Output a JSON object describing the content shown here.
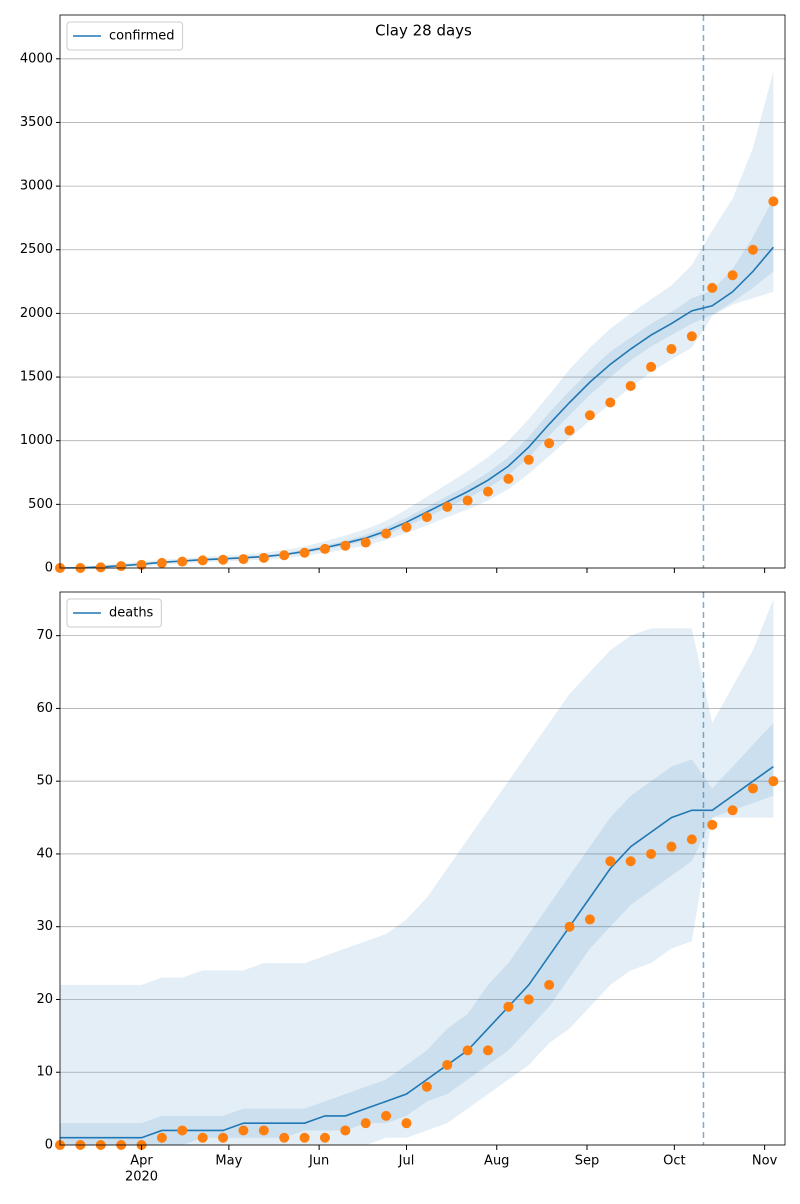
{
  "chart_data": [
    {
      "type": "line",
      "title": "Clay 28 days",
      "legend_corner": "upper left",
      "grid": true,
      "xtick_labels": false,
      "x": [
        "2020-03-04",
        "2020-03-11",
        "2020-03-18",
        "2020-03-25",
        "2020-04-01",
        "2020-04-08",
        "2020-04-15",
        "2020-04-22",
        "2020-04-29",
        "2020-05-06",
        "2020-05-13",
        "2020-05-20",
        "2020-05-27",
        "2020-06-03",
        "2020-06-10",
        "2020-06-17",
        "2020-06-24",
        "2020-07-01",
        "2020-07-08",
        "2020-07-15",
        "2020-07-22",
        "2020-07-29",
        "2020-08-05",
        "2020-08-12",
        "2020-08-19",
        "2020-08-26",
        "2020-09-02",
        "2020-09-09",
        "2020-09-16",
        "2020-09-23",
        "2020-09-30",
        "2020-10-07",
        "2020-10-14",
        "2020-10-21",
        "2020-10-28",
        "2020-11-04"
      ],
      "xlim": [
        "2020-03-04",
        "2020-11-08"
      ],
      "xticks": [
        {
          "value": "2020-04-01",
          "label": "Apr"
        },
        {
          "value": "2020-05-01",
          "label": "May"
        },
        {
          "value": "2020-06-01",
          "label": "Jun"
        },
        {
          "value": "2020-07-01",
          "label": "Jul"
        },
        {
          "value": "2020-08-01",
          "label": "Aug"
        },
        {
          "value": "2020-09-01",
          "label": "Sep"
        },
        {
          "value": "2020-10-01",
          "label": "Oct"
        },
        {
          "value": "2020-11-01",
          "label": "Nov"
        }
      ],
      "vline": "2020-10-11",
      "ylim": [
        0,
        4344
      ],
      "yticks": [
        0,
        500,
        1000,
        1500,
        2000,
        2500,
        3000,
        3500,
        4000
      ],
      "bands": [
        {
          "color": "#1f77b4",
          "upper": [
            5,
            10,
            20,
            35,
            50,
            65,
            75,
            85,
            95,
            105,
            120,
            140,
            170,
            210,
            255,
            305,
            370,
            460,
            560,
            660,
            760,
            870,
            1000,
            1170,
            1360,
            1560,
            1730,
            1880,
            2000,
            2110,
            2220,
            2380,
            2650,
            2900,
            3300,
            3900
          ],
          "lower": [
            0,
            0,
            2,
            6,
            12,
            25,
            35,
            45,
            52,
            58,
            65,
            75,
            95,
            120,
            145,
            175,
            220,
            275,
            335,
            400,
            460,
            530,
            620,
            740,
            880,
            1020,
            1160,
            1290,
            1420,
            1540,
            1640,
            1730,
            1980,
            2070,
            2120,
            2170
          ]
        },
        {
          "color": "#1f77b4",
          "upper": [
            2,
            5,
            12,
            24,
            38,
            53,
            63,
            73,
            80,
            88,
            100,
            115,
            145,
            178,
            215,
            260,
            320,
            395,
            480,
            565,
            650,
            750,
            870,
            1030,
            1220,
            1390,
            1550,
            1700,
            1810,
            1920,
            2010,
            2120,
            2180,
            2350,
            2600,
            2900
          ],
          "lower": [
            0,
            0,
            5,
            13,
            23,
            37,
            47,
            57,
            64,
            72,
            80,
            95,
            117,
            144,
            176,
            212,
            262,
            328,
            400,
            475,
            550,
            630,
            730,
            870,
            1040,
            1200,
            1360,
            1500,
            1630,
            1740,
            1830,
            1920,
            1990,
            2090,
            2200,
            2330
          ]
        }
      ],
      "series": [
        {
          "name": "confirmed",
          "color": "#1f77b4",
          "marker": "line",
          "values": [
            0,
            2,
            8,
            18,
            30,
            45,
            55,
            65,
            72,
            80,
            90,
            105,
            130,
            160,
            195,
            235,
            290,
            360,
            440,
            520,
            600,
            690,
            800,
            950,
            1130,
            1300,
            1460,
            1600,
            1720,
            1830,
            1920,
            2020,
            2060,
            2170,
            2330,
            2520
          ]
        },
        {
          "color": "#ff7f0e",
          "marker": "dots",
          "values": [
            0,
            0,
            5,
            15,
            25,
            40,
            50,
            60,
            65,
            70,
            80,
            100,
            120,
            150,
            175,
            200,
            270,
            320,
            400,
            480,
            530,
            600,
            700,
            850,
            980,
            1080,
            1200,
            1300,
            1430,
            1580,
            1720,
            1820,
            2200,
            2300,
            2500,
            2880
          ]
        }
      ]
    },
    {
      "type": "line",
      "legend_corner": "upper left",
      "grid": true,
      "xtick_labels": true,
      "x_year_label": "2020",
      "x": [
        "2020-03-04",
        "2020-03-11",
        "2020-03-18",
        "2020-03-25",
        "2020-04-01",
        "2020-04-08",
        "2020-04-15",
        "2020-04-22",
        "2020-04-29",
        "2020-05-06",
        "2020-05-13",
        "2020-05-20",
        "2020-05-27",
        "2020-06-03",
        "2020-06-10",
        "2020-06-17",
        "2020-06-24",
        "2020-07-01",
        "2020-07-08",
        "2020-07-15",
        "2020-07-22",
        "2020-07-29",
        "2020-08-05",
        "2020-08-12",
        "2020-08-19",
        "2020-08-26",
        "2020-09-02",
        "2020-09-09",
        "2020-09-16",
        "2020-09-23",
        "2020-09-30",
        "2020-10-07",
        "2020-10-14",
        "2020-10-21",
        "2020-10-28",
        "2020-11-04"
      ],
      "xlim": [
        "2020-03-04",
        "2020-11-08"
      ],
      "xticks": [
        {
          "value": "2020-04-01",
          "label": "Apr"
        },
        {
          "value": "2020-05-01",
          "label": "May"
        },
        {
          "value": "2020-06-01",
          "label": "Jun"
        },
        {
          "value": "2020-07-01",
          "label": "Jul"
        },
        {
          "value": "2020-08-01",
          "label": "Aug"
        },
        {
          "value": "2020-09-01",
          "label": "Sep"
        },
        {
          "value": "2020-10-01",
          "label": "Oct"
        },
        {
          "value": "2020-11-01",
          "label": "Nov"
        }
      ],
      "vline": "2020-10-11",
      "ylim": [
        0,
        76
      ],
      "yticks": [
        0,
        10,
        20,
        30,
        40,
        50,
        60,
        70
      ],
      "bands": [
        {
          "color": "#1f77b4",
          "upper": [
            22,
            22,
            22,
            22,
            22,
            23,
            23,
            24,
            24,
            24,
            25,
            25,
            25,
            26,
            27,
            28,
            29,
            31,
            34,
            38,
            42,
            46,
            50,
            54,
            58,
            62,
            65,
            68,
            70,
            71,
            71,
            71,
            58,
            63,
            68,
            75
          ],
          "lower": [
            0,
            0,
            0,
            0,
            0,
            0,
            0,
            0,
            0,
            0,
            0,
            0,
            0,
            0,
            0,
            0,
            1,
            1,
            2,
            3,
            5,
            7,
            9,
            11,
            14,
            16,
            19,
            22,
            24,
            25,
            27,
            28,
            45,
            45,
            45,
            45
          ]
        },
        {
          "color": "#1f77b4",
          "upper": [
            3,
            3,
            3,
            3,
            3,
            4,
            4,
            4,
            4,
            5,
            5,
            5,
            5,
            6,
            7,
            8,
            9,
            11,
            13,
            16,
            18,
            22,
            25,
            29,
            33,
            37,
            41,
            45,
            48,
            50,
            52,
            53,
            49,
            52,
            55,
            58
          ],
          "lower": [
            0,
            0,
            0,
            0,
            0,
            0,
            0,
            1,
            1,
            1,
            1,
            1,
            2,
            2,
            2,
            3,
            3,
            4,
            6,
            7,
            9,
            11,
            13,
            16,
            19,
            23,
            27,
            30,
            33,
            35,
            37,
            39,
            45,
            46,
            47,
            48
          ]
        }
      ],
      "series": [
        {
          "name": "deaths",
          "color": "#1f77b4",
          "marker": "line",
          "values": [
            1,
            1,
            1,
            1,
            1,
            2,
            2,
            2,
            2,
            3,
            3,
            3,
            3,
            4,
            4,
            5,
            6,
            7,
            9,
            11,
            13,
            16,
            19,
            22,
            26,
            30,
            34,
            38,
            41,
            43,
            45,
            46,
            46,
            48,
            50,
            52
          ]
        },
        {
          "color": "#ff7f0e",
          "marker": "dots",
          "values": [
            0,
            0,
            0,
            0,
            0,
            1,
            2,
            1,
            1,
            2,
            2,
            1,
            1,
            1,
            2,
            3,
            4,
            3,
            8,
            11,
            13,
            13,
            19,
            20,
            22,
            30,
            31,
            39,
            39,
            40,
            41,
            42,
            44,
            46,
            49,
            50
          ]
        }
      ]
    }
  ]
}
